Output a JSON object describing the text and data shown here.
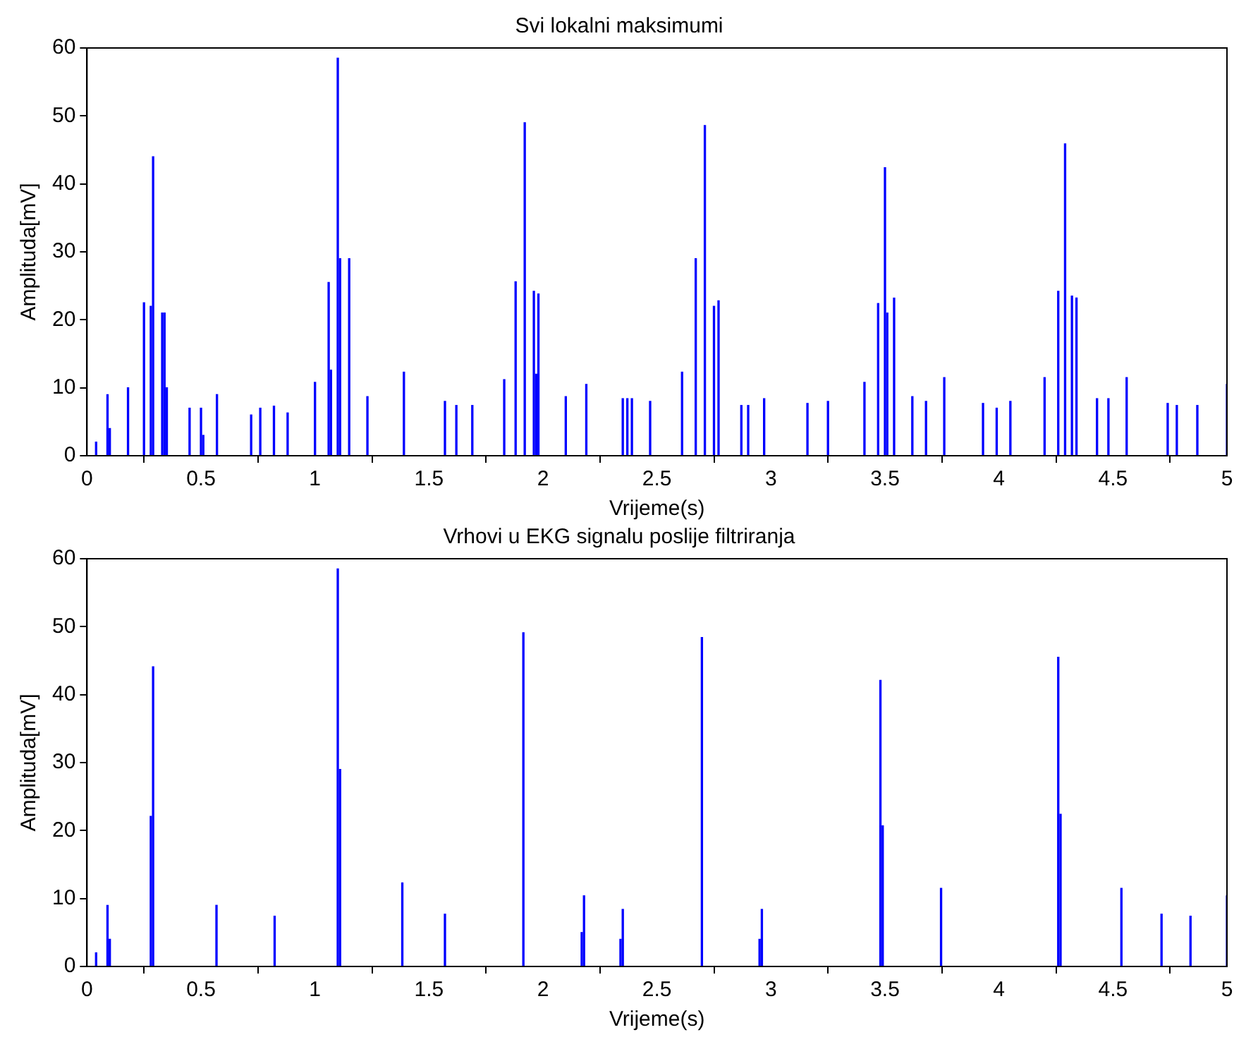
{
  "chart_data": [
    {
      "type": "bar",
      "title": "Svi lokalni maksimumi",
      "xlabel": "Vrijeme(s)",
      "ylabel": "Amplituda[mV]",
      "color": "#0000ff",
      "grid": false,
      "xlim": [
        0,
        5
      ],
      "ylim": [
        0,
        60
      ],
      "xticks": [
        0,
        0.5,
        1,
        1.5,
        2,
        2.5,
        3,
        3.5,
        4,
        4.5,
        5
      ],
      "yticks": [
        0,
        10,
        20,
        30,
        40,
        50,
        60
      ],
      "x": [
        0.04,
        0.09,
        0.1,
        0.18,
        0.25,
        0.28,
        0.29,
        0.33,
        0.34,
        0.35,
        0.45,
        0.5,
        0.51,
        0.57,
        0.72,
        0.76,
        0.82,
        0.88,
        1.0,
        1.06,
        1.07,
        1.1,
        1.11,
        1.15,
        1.23,
        1.39,
        1.57,
        1.62,
        1.69,
        1.83,
        1.88,
        1.92,
        1.96,
        1.97,
        1.98,
        2.1,
        2.19,
        2.35,
        2.37,
        2.39,
        2.47,
        2.61,
        2.67,
        2.71,
        2.75,
        2.77,
        2.87,
        2.9,
        2.97,
        3.16,
        3.25,
        3.41,
        3.47,
        3.5,
        3.51,
        3.54,
        3.62,
        3.68,
        3.76,
        3.93,
        3.99,
        4.05,
        4.2,
        4.26,
        4.29,
        4.32,
        4.34,
        4.43,
        4.48,
        4.56,
        4.74,
        4.78,
        4.87,
        5.0
      ],
      "values": [
        2,
        9,
        4,
        10,
        22.5,
        22,
        44,
        21,
        21,
        10,
        7,
        7,
        3,
        9,
        6,
        7,
        7.3,
        6.3,
        10.8,
        25.5,
        12.6,
        58.5,
        29,
        29,
        8.7,
        12.3,
        8,
        7.4,
        7.4,
        11.2,
        25.6,
        49,
        24.2,
        12,
        23.8,
        8.7,
        10.5,
        8.4,
        8.4,
        8.4,
        8,
        12.3,
        29,
        48.6,
        22,
        22.8,
        7.4,
        7.4,
        8.4,
        7.7,
        8,
        10.8,
        22.4,
        42.4,
        21,
        23.2,
        8.7,
        8,
        11.5,
        7.7,
        7,
        8,
        11.5,
        24.2,
        45.9,
        23.5,
        23.2,
        8.4,
        8.4,
        11.5,
        7.7,
        7.4,
        7.4,
        10.5
      ]
    },
    {
      "type": "bar",
      "title": "Vrhovi u EKG signalu poslije filtriranja",
      "xlabel": "Vrijeme(s)",
      "ylabel": "Amplituda[mV]",
      "color": "#0000ff",
      "grid": false,
      "xlim": [
        0,
        5
      ],
      "ylim": [
        0,
        60
      ],
      "xticks": [
        0,
        0.5,
        1,
        1.5,
        2,
        2.5,
        3,
        3.5,
        4,
        4.5,
        5
      ],
      "yticks": [
        0,
        10,
        20,
        30,
        40,
        50,
        60
      ],
      "x": [
        0.04,
        0.09,
        0.1,
        0.28,
        0.29,
        0.568,
        0.823,
        1.1,
        1.11,
        1.383,
        1.57,
        1.914,
        2.17,
        2.18,
        2.34,
        2.35,
        2.697,
        2.95,
        2.96,
        3.48,
        3.49,
        3.746,
        4.26,
        4.27,
        4.537,
        4.713,
        4.84,
        5.0
      ],
      "values": [
        2,
        9,
        4,
        22.1,
        44.1,
        9,
        7.4,
        58.5,
        29,
        12.3,
        7.7,
        49.1,
        5,
        10.4,
        4,
        8.4,
        48.4,
        4,
        8.4,
        42.1,
        20.7,
        11.5,
        45.5,
        22.4,
        11.5,
        7.7,
        7.4,
        10.4
      ]
    }
  ]
}
